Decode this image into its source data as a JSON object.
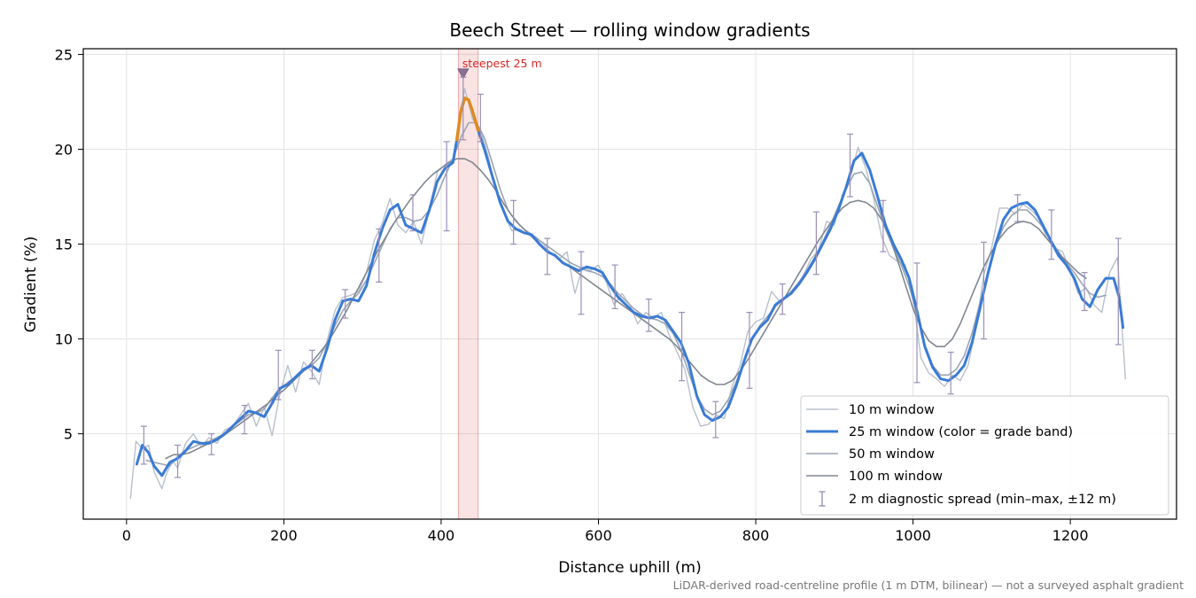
{
  "chart_data": {
    "type": "line",
    "title": "Beech Street — rolling window gradients",
    "xlabel": "Distance uphill (m)",
    "ylabel": "Gradient (%)",
    "xlim": [
      -55,
      1335
    ],
    "ylim": [
      0.5,
      25.3
    ],
    "xticks": [
      0,
      200,
      400,
      600,
      800,
      1000,
      1200
    ],
    "yticks": [
      5,
      10,
      15,
      20,
      25
    ],
    "grid": true,
    "legend_position": "lower-right",
    "footnote": "LiDAR-derived road-centreline profile (1 m DTM, bilinear) — not a surveyed asphalt gradient",
    "highlight": {
      "x_range": [
        422,
        447
      ],
      "label": "steepest 25 m",
      "marker_x": 428,
      "marker_y": 24.0,
      "color": "#d62728"
    },
    "colors": {
      "w10": "#b8c0cc",
      "w25": "#3a7bd5",
      "w25_steep": "#e08a1e",
      "w50": "#9aa5b3",
      "w100": "#808790",
      "errorbar": "#9b8fb8",
      "grid": "#e3e3e3"
    },
    "series": [
      {
        "name": "10 m window",
        "x": [
          5,
          12,
          20,
          28,
          35,
          45,
          50,
          58,
          65,
          75,
          85,
          95,
          105,
          115,
          125,
          135,
          145,
          155,
          165,
          175,
          185,
          195,
          205,
          215,
          225,
          235,
          245,
          255,
          265,
          275,
          285,
          295,
          305,
          315,
          325,
          335,
          345,
          355,
          365,
          375,
          385,
          395,
          405,
          415,
          425,
          430,
          440,
          450,
          460,
          470,
          480,
          490,
          500,
          510,
          520,
          530,
          540,
          550,
          560,
          570,
          580,
          590,
          600,
          610,
          620,
          630,
          640,
          650,
          660,
          670,
          680,
          690,
          700,
          710,
          720,
          730,
          740,
          750,
          760,
          770,
          780,
          790,
          800,
          810,
          820,
          830,
          840,
          850,
          860,
          870,
          880,
          890,
          900,
          910,
          920,
          930,
          940,
          950,
          960,
          970,
          980,
          990,
          1000,
          1010,
          1020,
          1030,
          1040,
          1050,
          1060,
          1070,
          1080,
          1090,
          1100,
          1110,
          1120,
          1130,
          1140,
          1150,
          1160,
          1170,
          1180,
          1190,
          1200,
          1210,
          1220,
          1230,
          1240,
          1250,
          1260,
          1270
        ],
        "y": [
          1.6,
          4.6,
          4.2,
          4.4,
          3.0,
          2.1,
          2.8,
          3.6,
          3.2,
          4.5,
          5.0,
          4.3,
          4.8,
          4.5,
          5.2,
          5.4,
          6.0,
          6.6,
          5.4,
          6.4,
          4.9,
          7.1,
          8.6,
          7.2,
          8.8,
          8.3,
          7.6,
          9.9,
          11.5,
          12.2,
          12.3,
          12.5,
          13.5,
          15.2,
          16.1,
          17.4,
          16.0,
          15.6,
          16.2,
          15.0,
          16.8,
          18.8,
          19.2,
          19.5,
          22.0,
          23.2,
          21.6,
          21.0,
          19.6,
          17.8,
          16.6,
          15.7,
          15.8,
          15.5,
          15.4,
          15.0,
          14.5,
          14.2,
          14.6,
          12.4,
          13.8,
          13.6,
          13.9,
          13.0,
          11.8,
          12.4,
          11.8,
          10.8,
          11.4,
          11.1,
          11.4,
          10.2,
          9.3,
          8.4,
          6.4,
          5.4,
          5.5,
          6.0,
          5.8,
          7.5,
          8.6,
          10.4,
          10.9,
          11.1,
          12.5,
          12.0,
          12.3,
          12.6,
          13.3,
          14.2,
          14.7,
          16.2,
          16.0,
          17.6,
          18.5,
          20.1,
          19.0,
          17.4,
          15.4,
          14.4,
          14.1,
          13.9,
          12.2,
          9.0,
          8.2,
          7.9,
          7.5,
          8.1,
          7.8,
          8.6,
          10.6,
          13.4,
          14.8,
          16.9,
          16.9,
          16.6,
          17.1,
          16.8,
          16.4,
          15.3,
          14.8,
          14.6,
          13.6,
          12.4,
          12.7,
          11.8,
          11.4,
          13.5,
          14.3,
          7.9
        ]
      },
      {
        "name": "25 m window (color = grade band)",
        "x": [
          13,
          20,
          28,
          35,
          45,
          55,
          65,
          75,
          85,
          95,
          105,
          115,
          125,
          135,
          145,
          155,
          165,
          175,
          185,
          195,
          205,
          215,
          225,
          235,
          245,
          255,
          265,
          275,
          285,
          295,
          305,
          315,
          325,
          335,
          345,
          355,
          365,
          375,
          385,
          395,
          405,
          415,
          420,
          425,
          430,
          435,
          440,
          447,
          455,
          465,
          475,
          485,
          495,
          505,
          515,
          525,
          535,
          545,
          555,
          565,
          575,
          585,
          595,
          605,
          615,
          625,
          635,
          645,
          655,
          665,
          675,
          685,
          695,
          705,
          715,
          725,
          735,
          745,
          755,
          765,
          775,
          785,
          795,
          805,
          815,
          825,
          835,
          845,
          855,
          865,
          875,
          885,
          895,
          905,
          915,
          925,
          935,
          945,
          955,
          965,
          975,
          985,
          995,
          1005,
          1015,
          1025,
          1035,
          1045,
          1055,
          1065,
          1075,
          1085,
          1095,
          1105,
          1115,
          1125,
          1135,
          1145,
          1155,
          1165,
          1175,
          1185,
          1195,
          1205,
          1215,
          1225,
          1235,
          1245,
          1255,
          1262,
          1267
        ],
        "y": [
          3.4,
          4.4,
          4.0,
          3.3,
          2.8,
          3.5,
          3.7,
          4.1,
          4.6,
          4.5,
          4.5,
          4.7,
          5.0,
          5.4,
          5.8,
          6.2,
          6.1,
          5.9,
          6.6,
          7.4,
          7.6,
          8.0,
          8.4,
          8.6,
          8.3,
          9.5,
          11.0,
          12.0,
          12.1,
          12.0,
          12.8,
          14.5,
          15.8,
          16.8,
          17.1,
          16.0,
          15.8,
          15.6,
          16.8,
          18.3,
          19.0,
          19.3,
          20.5,
          22.0,
          22.7,
          22.6,
          22.0,
          21.0,
          20.0,
          18.6,
          17.2,
          16.2,
          15.8,
          15.6,
          15.5,
          15.0,
          14.6,
          14.4,
          14.0,
          13.8,
          13.6,
          13.8,
          13.7,
          13.5,
          12.8,
          12.2,
          11.8,
          11.4,
          11.2,
          11.1,
          11.2,
          11.0,
          10.4,
          9.8,
          8.7,
          7.0,
          6.0,
          5.7,
          5.9,
          6.4,
          7.5,
          8.8,
          10.0,
          10.6,
          11.0,
          11.8,
          12.1,
          12.4,
          12.9,
          13.5,
          14.2,
          15.0,
          15.8,
          16.8,
          18.0,
          19.4,
          19.8,
          18.9,
          17.5,
          16.0,
          15.0,
          14.2,
          13.2,
          11.5,
          9.6,
          8.5,
          7.9,
          7.8,
          8.1,
          8.6,
          9.8,
          11.6,
          13.4,
          15.0,
          16.3,
          16.9,
          17.1,
          17.2,
          16.8,
          16.0,
          15.2,
          14.4,
          13.9,
          13.2,
          12.1,
          11.7,
          12.6,
          13.2,
          13.2,
          12.2,
          10.6
        ]
      },
      {
        "name": "50 m window",
        "x": [
          25,
          35,
          45,
          55,
          65,
          75,
          85,
          95,
          105,
          115,
          125,
          135,
          145,
          155,
          165,
          175,
          185,
          195,
          205,
          215,
          225,
          235,
          245,
          255,
          265,
          275,
          285,
          295,
          305,
          315,
          325,
          335,
          345,
          355,
          365,
          375,
          385,
          395,
          405,
          415,
          425,
          435,
          445,
          455,
          465,
          475,
          485,
          495,
          505,
          515,
          525,
          535,
          545,
          555,
          565,
          575,
          585,
          595,
          605,
          615,
          625,
          635,
          645,
          655,
          665,
          675,
          685,
          695,
          705,
          715,
          725,
          735,
          745,
          755,
          765,
          775,
          785,
          795,
          805,
          815,
          825,
          835,
          845,
          855,
          865,
          875,
          885,
          895,
          905,
          915,
          925,
          935,
          945,
          955,
          965,
          975,
          985,
          995,
          1005,
          1015,
          1025,
          1035,
          1045,
          1055,
          1065,
          1075,
          1085,
          1095,
          1105,
          1115,
          1125,
          1135,
          1145,
          1155,
          1165,
          1175,
          1185,
          1195,
          1205,
          1215,
          1225,
          1235,
          1245
        ],
        "y": [
          3.6,
          3.5,
          3.4,
          3.3,
          3.8,
          4.1,
          4.3,
          4.5,
          4.6,
          4.8,
          5.0,
          5.4,
          5.7,
          6.0,
          6.1,
          6.3,
          6.9,
          7.4,
          7.7,
          8.0,
          8.3,
          8.6,
          9.0,
          9.8,
          10.7,
          11.5,
          12.0,
          12.4,
          13.1,
          14.0,
          14.9,
          15.8,
          16.4,
          16.4,
          16.2,
          16.3,
          16.8,
          17.6,
          18.6,
          19.5,
          20.6,
          21.4,
          21.4,
          20.6,
          19.3,
          17.9,
          16.8,
          16.2,
          15.8,
          15.5,
          15.2,
          14.9,
          14.6,
          14.3,
          14.0,
          13.8,
          13.6,
          13.5,
          13.3,
          12.9,
          12.4,
          12.0,
          11.6,
          11.3,
          11.1,
          11.0,
          10.8,
          10.3,
          9.4,
          8.2,
          7.0,
          6.3,
          6.0,
          6.2,
          6.8,
          7.7,
          8.8,
          9.9,
          10.7,
          11.2,
          11.7,
          12.1,
          12.5,
          13.0,
          13.6,
          14.3,
          15.1,
          16.0,
          17.0,
          17.9,
          18.7,
          18.8,
          18.2,
          17.0,
          15.8,
          14.8,
          13.9,
          12.8,
          11.3,
          9.7,
          8.6,
          8.1,
          8.1,
          8.4,
          9.1,
          10.3,
          11.9,
          13.5,
          14.9,
          15.9,
          16.5,
          16.8,
          16.8,
          16.4,
          15.9,
          15.2,
          14.6,
          14.0,
          13.5,
          12.9,
          12.4,
          12.2,
          12.3
        ]
      },
      {
        "name": "100 m window",
        "x": [
          50,
          60,
          70,
          80,
          90,
          100,
          110,
          120,
          130,
          140,
          150,
          160,
          170,
          180,
          190,
          200,
          210,
          220,
          230,
          240,
          250,
          260,
          270,
          280,
          290,
          300,
          310,
          320,
          330,
          340,
          350,
          360,
          370,
          380,
          390,
          400,
          410,
          420,
          430,
          440,
          450,
          460,
          470,
          480,
          490,
          500,
          510,
          520,
          530,
          540,
          550,
          560,
          570,
          580,
          590,
          600,
          610,
          620,
          630,
          640,
          650,
          660,
          670,
          680,
          690,
          700,
          710,
          720,
          730,
          740,
          750,
          760,
          770,
          780,
          790,
          800,
          810,
          820,
          830,
          840,
          850,
          860,
          870,
          880,
          890,
          900,
          910,
          920,
          930,
          940,
          950,
          960,
          970,
          980,
          990,
          1000,
          1010,
          1020,
          1030,
          1040,
          1050,
          1060,
          1070,
          1080,
          1090,
          1100,
          1110,
          1120,
          1130,
          1140,
          1150,
          1160,
          1170,
          1180,
          1190,
          1200,
          1210,
          1220
        ],
        "y": [
          3.7,
          3.9,
          3.9,
          4.0,
          4.2,
          4.4,
          4.6,
          4.8,
          5.1,
          5.4,
          5.7,
          6.0,
          6.3,
          6.6,
          7.0,
          7.3,
          7.7,
          8.1,
          8.5,
          9.0,
          9.5,
          10.1,
          10.8,
          11.5,
          12.3,
          13.1,
          13.9,
          14.7,
          15.4,
          16.1,
          16.7,
          17.3,
          17.8,
          18.3,
          18.7,
          19.0,
          19.3,
          19.5,
          19.5,
          19.3,
          18.9,
          18.4,
          17.8,
          17.1,
          16.5,
          16.0,
          15.6,
          15.2,
          14.8,
          14.5,
          14.2,
          13.9,
          13.6,
          13.3,
          13.0,
          12.7,
          12.4,
          12.1,
          11.8,
          11.5,
          11.2,
          10.9,
          10.6,
          10.3,
          10.0,
          9.6,
          9.1,
          8.6,
          8.1,
          7.8,
          7.6,
          7.6,
          7.8,
          8.3,
          8.9,
          9.6,
          10.3,
          11.0,
          11.7,
          12.4,
          13.1,
          13.8,
          14.5,
          15.2,
          15.8,
          16.4,
          16.9,
          17.2,
          17.3,
          17.2,
          16.9,
          16.3,
          15.4,
          14.2,
          12.9,
          11.6,
          10.6,
          9.9,
          9.6,
          9.6,
          10.0,
          10.8,
          11.8,
          12.8,
          13.8,
          14.6,
          15.3,
          15.8,
          16.1,
          16.2,
          16.1,
          15.8,
          15.3,
          14.8,
          14.3,
          13.9,
          13.5,
          13.2
        ]
      }
    ],
    "errorbars": {
      "name": "2 m diagnostic spread (min–max, ±12 m)",
      "x": [
        22,
        65,
        108,
        150,
        193,
        236,
        278,
        321,
        364,
        407,
        428,
        450,
        492,
        535,
        578,
        621,
        664,
        706,
        749,
        792,
        834,
        877,
        920,
        962,
        1005,
        1048,
        1090,
        1133,
        1176,
        1218,
        1261
      ],
      "ymin": [
        3.4,
        2.7,
        3.9,
        5.0,
        6.8,
        7.9,
        11.1,
        13.0,
        15.7,
        15.7,
        20.5,
        20.4,
        15.0,
        13.4,
        11.3,
        11.6,
        10.4,
        7.8,
        4.8,
        7.4,
        11.3,
        13.4,
        17.5,
        14.6,
        7.7,
        7.1,
        10.0,
        16.2,
        14.2,
        11.5,
        9.7
      ],
      "ymax": [
        5.4,
        4.4,
        5.0,
        6.5,
        9.4,
        9.4,
        12.6,
        15.8,
        17.6,
        20.4,
        23.8,
        22.9,
        17.3,
        15.3,
        14.6,
        13.9,
        12.1,
        11.4,
        6.7,
        11.4,
        12.9,
        16.7,
        20.8,
        17.3,
        14.0,
        9.3,
        15.1,
        17.6,
        16.8,
        13.5,
        15.3
      ]
    }
  }
}
